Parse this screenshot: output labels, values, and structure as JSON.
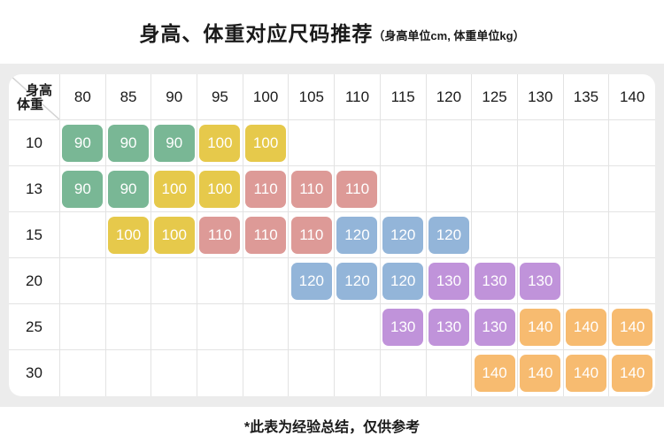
{
  "chart_data": {
    "type": "table",
    "title": "身高、体重对应尺码推荐",
    "unit_note": "（身高单位cm, 体重单位kg）",
    "corner": {
      "top": "身高",
      "bottom": "体重"
    },
    "height_columns": [
      "80",
      "85",
      "90",
      "95",
      "100",
      "105",
      "110",
      "115",
      "120",
      "125",
      "130",
      "135",
      "140"
    ],
    "rows": [
      {
        "weight": "10",
        "cells": [
          "90",
          "90",
          "90",
          "100",
          "100",
          null,
          null,
          null,
          null,
          null,
          null,
          null,
          null
        ]
      },
      {
        "weight": "13",
        "cells": [
          "90",
          "90",
          "100",
          "100",
          "110",
          "110",
          "110",
          null,
          null,
          null,
          null,
          null,
          null
        ]
      },
      {
        "weight": "15",
        "cells": [
          null,
          "100",
          "100",
          "110",
          "110",
          "110",
          "120",
          "120",
          "120",
          null,
          null,
          null,
          null
        ]
      },
      {
        "weight": "20",
        "cells": [
          null,
          null,
          null,
          null,
          null,
          "120",
          "120",
          "120",
          "130",
          "130",
          "130",
          null,
          null
        ]
      },
      {
        "weight": "25",
        "cells": [
          null,
          null,
          null,
          null,
          null,
          null,
          null,
          "130",
          "130",
          "130",
          "140",
          "140",
          "140"
        ]
      },
      {
        "weight": "30",
        "cells": [
          null,
          null,
          null,
          null,
          null,
          null,
          null,
          null,
          null,
          "140",
          "140",
          "140",
          "140"
        ]
      }
    ],
    "size_colors": {
      "90": "#79b795",
      "100": "#e6c94b",
      "110": "#dd9a97",
      "120": "#93b5d9",
      "130": "#c093da",
      "140": "#f7bb70"
    },
    "footer": "*此表为经验总结，仅供参考"
  }
}
